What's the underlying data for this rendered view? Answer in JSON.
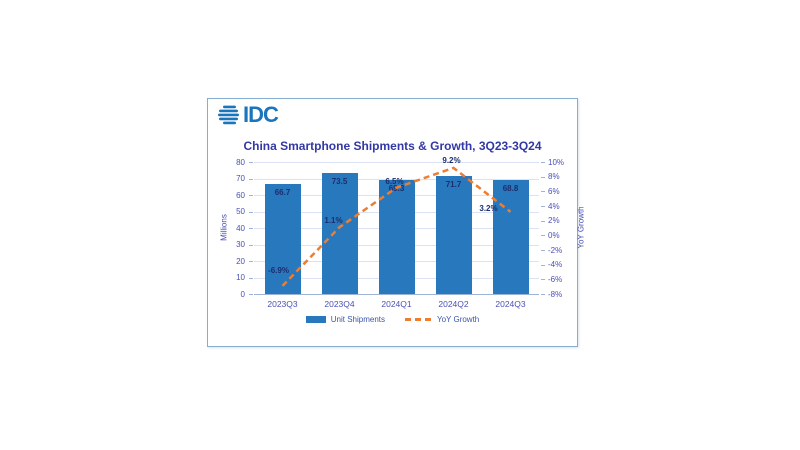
{
  "logo": {
    "text": "IDC",
    "brand_color": "#1b75bc"
  },
  "card": {
    "border_color": "#86aed3"
  },
  "chart_data": {
    "type": "bar+line",
    "title": "China Smartphone Shipments & Growth, 3Q23-3Q24",
    "categories": [
      "2023Q3",
      "2023Q4",
      "2024Q1",
      "2024Q2",
      "2024Q3"
    ],
    "series": [
      {
        "name": "Unit Shipments",
        "type": "bar",
        "axis": "left",
        "color": "#2878be",
        "values": [
          66.7,
          73.5,
          69.3,
          71.7,
          68.8
        ],
        "value_labels": [
          "66.7",
          "73.5",
          "69.3",
          "71.7",
          "68.8"
        ]
      },
      {
        "name": "YoY Growth",
        "type": "line",
        "axis": "right",
        "color": "#ed7d31",
        "dashed": true,
        "values": [
          -6.9,
          1.1,
          6.5,
          9.2,
          3.2
        ],
        "value_labels": [
          "-6.9%",
          "1.1%",
          "6.5%",
          "9.2%",
          "3.2%"
        ]
      }
    ],
    "left_axis": {
      "title": "Millions",
      "min": 0,
      "max": 80,
      "step": 10,
      "tick_labels": [
        "0",
        "10",
        "20",
        "30",
        "40",
        "50",
        "60",
        "70",
        "80"
      ]
    },
    "right_axis": {
      "title": "YoY Growth",
      "min": -8,
      "max": 10,
      "step": 2,
      "tick_labels_top_to_bottom": [
        "10%",
        "8%",
        "6%",
        "4%",
        "2%",
        "0%",
        "-2%",
        "-4%",
        "-6%",
        "-8%"
      ]
    },
    "legend": [
      {
        "label": "Unit Shipments",
        "swatch": "bar"
      },
      {
        "label": "YoY Growth",
        "swatch": "dashed-line"
      }
    ],
    "grid": true,
    "colors": {
      "title_text": "#3238a4",
      "tick_text": "#4a50b4",
      "data_label_text": "#1c2e6e",
      "gridline": "#dbe2f3",
      "axis_line": "#9db4d6"
    }
  }
}
